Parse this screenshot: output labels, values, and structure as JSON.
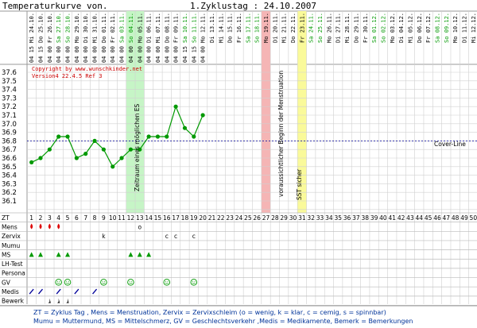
{
  "header": {
    "title": "Temperaturkurve von.",
    "cycle_start": "1.Zyklustag : 24.10.2007"
  },
  "copyright": "Copyright by www.wunschkinder.net",
  "version": "Version4 22.4.5 Ref 3",
  "annotations": {
    "fertile": "Zeitraum eines möglichen ES",
    "menses": "voraussichtlicher Beginn der Menstruation",
    "sst": "SST sicher",
    "cover_line": "Cover-Line"
  },
  "colors": {
    "green_band": "#c6f5c6",
    "red_band": "#f5b5b5",
    "yellow_band": "#fafa9a",
    "temp": "#009900",
    "cover": "#000099",
    "weekend": "#009900",
    "mens": "#dd0000",
    "zervix": "#000099",
    "ms": "#009900",
    "gv": "#009900",
    "medis": "#000099"
  },
  "row_labels": [
    "ZT",
    "Mens",
    "Zervix",
    "Mumu",
    "MS",
    "LH-Test",
    "Persona",
    "GV",
    "Medis",
    "Bewerk"
  ],
  "legend": [
    "ZT = Zyklus Tag , Mens = Menstruation, Zervix = Zervixschleim (o = wenig, k = klar, c = cemig, s = spinnbar)",
    "Mumu = Muttermund, MS = Mittelschmerz, GV = Geschlechtsverkehr ,Medis = Medikamente, Bemerk = Bemerkungen"
  ],
  "chart_data": {
    "type": "line",
    "title": "Temperaturkurve von.",
    "xlabel": "ZT",
    "ylabel": "",
    "ylim": [
      36.0,
      37.6
    ],
    "yticks": [
      "37.6",
      "37.5",
      "37.4",
      "37.3",
      "37.2",
      "37.1",
      "37.0",
      "36.9",
      "36.8",
      "36.7",
      "36.6",
      "36.5",
      "36.4",
      "36.3",
      "36.2",
      "36.1"
    ],
    "cover_line": 36.8,
    "zt": [
      1,
      2,
      3,
      4,
      5,
      6,
      7,
      8,
      9,
      10,
      11,
      12,
      13,
      14,
      15,
      16,
      17,
      18,
      19,
      20,
      21,
      22,
      23,
      24,
      25,
      26,
      27,
      28,
      29,
      30,
      31,
      32,
      33,
      34,
      35,
      36,
      37,
      38,
      39,
      40,
      41,
      42,
      43,
      44,
      45,
      46,
      47,
      48,
      49,
      50
    ],
    "weekend_days": [
      4,
      5,
      11,
      12,
      18,
      19,
      25,
      26,
      32,
      33,
      39,
      40,
      46,
      47
    ],
    "dates": [
      "Mi 24.10.",
      "Do 25.10.",
      "Fr 26.10.",
      "Sa 27.10.",
      "So 28.10.",
      "Mo 29.10.",
      "Di 30.10.",
      "Mi 31.10.",
      "Do 01.11.",
      "Fr 02.11.",
      "Sa 03.11.",
      "So 04.11.",
      "Mo 05.11.",
      "Di 06.11.",
      "Mi 07.11.",
      "Do 08.11.",
      "Fr 09.11.",
      "Sa 10.11.",
      "So 11.11.",
      "Mo 12.11.",
      "Di 13.11.",
      "Mi 14.11.",
      "Do 15.11.",
      "Fr 16.11.",
      "Sa 17.11.",
      "So 18.11.",
      "Mo 19.11.",
      "Di 20.11.",
      "Mi 21.11.",
      "Do 22.11.",
      "Fr 23.11.",
      "Sa 24.11.",
      "So 25.11.",
      "Mo 26.11.",
      "Di 27.11.",
      "Mi 28.11.",
      "Do 29.11.",
      "Fr 30.11.",
      "Sa 01.12.",
      "So 02.12.",
      "Mo 03.12.",
      "Di 04.12.",
      "Mi 05.12.",
      "Do 06.12.",
      "Fr 07.12.",
      "Sa 08.12.",
      "So 09.12.",
      "Mo 10.12.",
      "Di 11.12.",
      "Mi 12.12."
    ],
    "times": [
      "04 15",
      "04 15",
      "04 00",
      "04 00",
      "04 00",
      "04 00",
      "04 00",
      "04 00",
      "04 00",
      "04 00",
      "04 00",
      "04 00",
      "04 00",
      "04 00",
      "04 00",
      "04 00",
      "04 00",
      "04 15",
      "04 15",
      "04 00"
    ],
    "temps": [
      36.55,
      36.6,
      36.7,
      36.85,
      36.85,
      36.6,
      36.65,
      36.8,
      36.7,
      36.5,
      36.6,
      36.7,
      36.7,
      36.85,
      36.85,
      36.85,
      37.2,
      36.95,
      36.85,
      37.1
    ],
    "fertile_days": [
      12,
      13
    ],
    "menses_day": 27,
    "sst_day": 31,
    "mens": [
      1,
      2,
      3,
      4
    ],
    "zervix": [
      {
        "zt": 9,
        "v": "k"
      },
      {
        "zt": 13,
        "v": "o"
      },
      {
        "zt": 16,
        "v": "c"
      },
      {
        "zt": 17,
        "v": "c"
      },
      {
        "zt": 19,
        "v": "c"
      }
    ],
    "ms": [
      1,
      2,
      4,
      5,
      12,
      13,
      14
    ],
    "gv": [
      4,
      5,
      9,
      12,
      16,
      19
    ],
    "medis": [
      1,
      2,
      4,
      6,
      8
    ],
    "bewerk": [
      3,
      4,
      5
    ]
  }
}
